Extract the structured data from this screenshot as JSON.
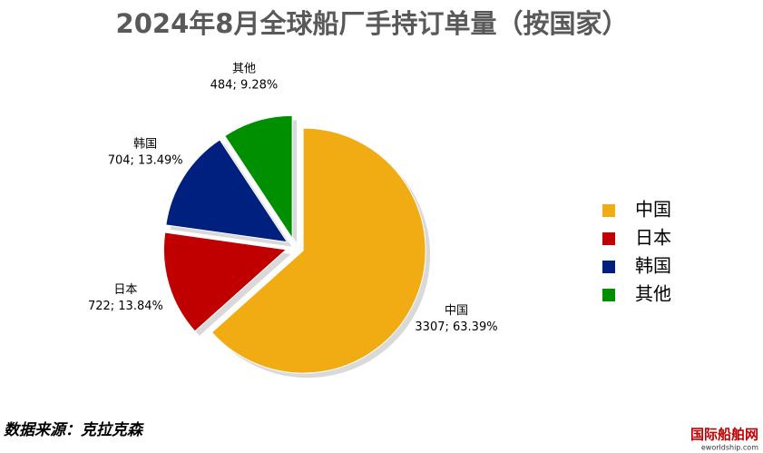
{
  "chart_data": {
    "type": "pie",
    "title": "2024年8月全球船厂手持订单量（按国家）",
    "categories": [
      "中国",
      "日本",
      "韩国",
      "其他"
    ],
    "values": [
      3307,
      722,
      704,
      484
    ],
    "value_labels": [
      "3307; 63.39%",
      "722; 13.84%",
      "704; 13.49%",
      "484; 9.28%"
    ],
    "colors": [
      "#f0ac12",
      "#c00000",
      "#00207f",
      "#008f00"
    ],
    "legend": "right",
    "source": "数据来源：克拉克森",
    "watermark": "国际船舶网",
    "watermark_url": "eworldship.com"
  }
}
